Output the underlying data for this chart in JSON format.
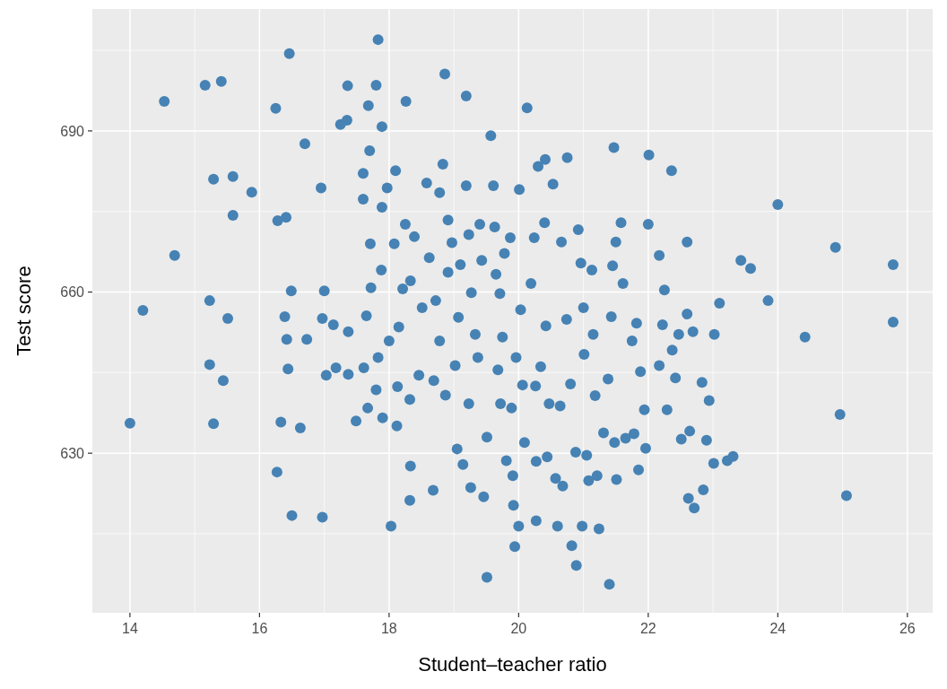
{
  "chart_data": {
    "type": "scatter",
    "xlabel": "Student–teacher ratio",
    "ylabel": "Test score",
    "xlim": [
      13.42,
      26.39
    ],
    "ylim": [
      600.3,
      712.7
    ],
    "xticks": [
      14,
      16,
      18,
      20,
      22,
      24,
      26
    ],
    "yticks": [
      630,
      660,
      690
    ],
    "grid": true,
    "marker": "circle",
    "series": [
      {
        "color": "#4682b4",
        "x": [
          14.0,
          14.2,
          14.53,
          14.69,
          15.16,
          15.41,
          15.23,
          15.29,
          15.23,
          15.29,
          15.44,
          15.51,
          15.59,
          15.59,
          15.88,
          16.27,
          16.25,
          16.28,
          16.33,
          16.41,
          16.39,
          16.42,
          16.44,
          16.46,
          16.5,
          16.49,
          16.7,
          16.63,
          16.73,
          16.95,
          16.97,
          16.97,
          17.0,
          17.03,
          17.14,
          17.18,
          17.25,
          17.35,
          17.36,
          17.37,
          17.37,
          17.49,
          17.6,
          17.6,
          17.61,
          17.65,
          17.68,
          17.7,
          17.71,
          17.67,
          17.72,
          17.8,
          17.83,
          17.8,
          17.89,
          17.89,
          17.83,
          17.9,
          17.88,
          18.0,
          17.97,
          18.03,
          18.1,
          18.08,
          18.12,
          18.13,
          18.15,
          18.21,
          18.25,
          18.26,
          18.32,
          18.33,
          18.32,
          18.33,
          18.39,
          18.46,
          18.51,
          18.58,
          18.62,
          18.68,
          18.69,
          18.72,
          18.78,
          18.78,
          18.83,
          18.86,
          18.87,
          18.91,
          18.91,
          18.97,
          19.02,
          19.05,
          19.07,
          19.1,
          19.14,
          19.19,
          19.19,
          19.23,
          19.23,
          19.26,
          19.27,
          19.33,
          19.37,
          19.4,
          19.43,
          19.46,
          19.51,
          19.51,
          19.57,
          19.61,
          19.63,
          19.65,
          19.68,
          19.71,
          19.72,
          19.75,
          19.78,
          19.81,
          19.87,
          19.89,
          19.91,
          19.92,
          19.94,
          19.96,
          20.0,
          20.01,
          20.03,
          20.06,
          20.09,
          20.13,
          20.19,
          20.24,
          20.26,
          20.27,
          20.27,
          20.3,
          20.34,
          20.41,
          20.4,
          20.42,
          20.44,
          20.47,
          20.53,
          20.57,
          20.6,
          20.64,
          20.66,
          20.68,
          20.74,
          20.75,
          20.8,
          20.82,
          20.88,
          20.89,
          20.92,
          20.96,
          20.98,
          21.0,
          21.01,
          21.05,
          21.08,
          21.13,
          21.15,
          21.18,
          21.21,
          21.24,
          21.31,
          21.38,
          21.4,
          21.43,
          21.45,
          21.47,
          21.48,
          21.5,
          21.51,
          21.58,
          21.61,
          21.65,
          21.75,
          21.78,
          21.82,
          21.85,
          21.88,
          21.94,
          21.96,
          22.0,
          22.01,
          22.17,
          22.17,
          22.22,
          22.25,
          22.29,
          22.36,
          22.37,
          22.42,
          22.47,
          22.51,
          22.6,
          22.6,
          22.62,
          22.64,
          22.71,
          22.69,
          22.83,
          22.85,
          22.9,
          22.94,
          23.01,
          23.02,
          23.1,
          23.22,
          23.31,
          23.43,
          23.58,
          23.85,
          24.0,
          24.42,
          24.89,
          24.96,
          25.06,
          25.78,
          25.78
        ],
        "values": [
          635.6,
          656.6,
          695.5,
          666.8,
          698.5,
          699.2,
          658.4,
          681.0,
          646.5,
          635.5,
          643.5,
          655.1,
          674.3,
          681.5,
          678.6,
          626.5,
          694.2,
          673.3,
          635.8,
          673.9,
          655.4,
          651.2,
          645.7,
          704.4,
          618.4,
          660.2,
          687.6,
          634.7,
          651.2,
          679.4,
          618.1,
          655.1,
          660.2,
          644.5,
          653.9,
          645.9,
          691.2,
          692.0,
          698.4,
          644.7,
          652.6,
          636.0,
          682.1,
          677.3,
          645.9,
          655.6,
          694.7,
          686.3,
          669.0,
          638.4,
          660.8,
          698.5,
          647.8,
          641.8,
          690.8,
          675.8,
          707.0,
          636.6,
          664.1,
          650.9,
          679.4,
          616.4,
          682.6,
          669.0,
          635.1,
          642.4,
          653.5,
          660.6,
          672.6,
          695.5,
          621.2,
          627.6,
          640.0,
          662.1,
          670.3,
          644.5,
          657.1,
          680.3,
          666.4,
          623.1,
          643.5,
          658.4,
          650.9,
          678.5,
          683.8,
          700.6,
          640.8,
          673.4,
          663.7,
          669.2,
          646.3,
          630.8,
          655.3,
          665.1,
          627.9,
          696.5,
          679.8,
          639.2,
          670.7,
          623.6,
          659.9,
          652.1,
          647.8,
          672.6,
          665.9,
          621.9,
          606.9,
          633.0,
          689.1,
          679.8,
          672.1,
          663.3,
          645.5,
          659.7,
          639.2,
          651.6,
          667.2,
          628.6,
          670.1,
          638.4,
          625.8,
          620.3,
          612.6,
          647.8,
          616.4,
          679.1,
          656.7,
          642.7,
          632.0,
          694.3,
          661.6,
          670.1,
          642.5,
          617.4,
          628.5,
          683.4,
          646.1,
          684.7,
          672.9,
          653.7,
          629.3,
          639.2,
          680.1,
          625.3,
          616.4,
          638.8,
          669.3,
          623.9,
          654.9,
          685.0,
          642.9,
          612.8,
          630.2,
          609.1,
          671.6,
          665.4,
          616.4,
          657.1,
          648.4,
          629.6,
          624.9,
          664.1,
          652.1,
          640.7,
          625.8,
          615.9,
          633.8,
          643.8,
          605.6,
          655.4,
          664.9,
          686.9,
          632.0,
          669.3,
          625.1,
          672.9,
          661.6,
          632.8,
          650.9,
          633.6,
          654.2,
          626.9,
          645.2,
          638.1,
          630.9,
          672.6,
          685.5,
          666.8,
          646.3,
          653.9,
          660.4,
          638.1,
          682.6,
          649.2,
          644.0,
          652.1,
          632.6,
          669.3,
          655.9,
          621.6,
          634.1,
          619.8,
          652.6,
          643.2,
          623.2,
          632.4,
          639.8,
          628.1,
          652.1,
          657.9,
          628.6,
          629.4,
          665.9,
          664.4,
          658.4,
          676.3,
          651.6,
          668.3,
          637.2,
          622.1,
          665.1,
          654.4
        ]
      }
    ]
  }
}
